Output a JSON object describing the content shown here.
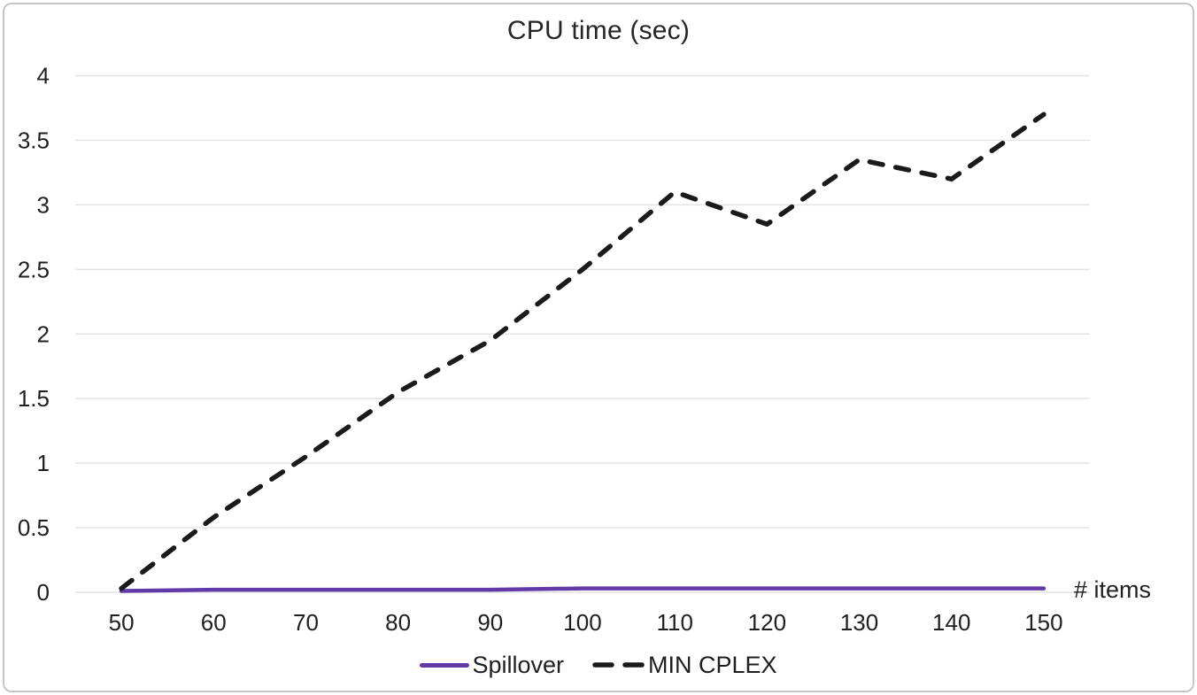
{
  "chart_data": {
    "type": "line",
    "title": "CPU time (sec)",
    "xlabel": "# items",
    "ylabel": "",
    "categories": [
      50,
      60,
      70,
      80,
      90,
      100,
      110,
      120,
      130,
      140,
      150
    ],
    "series": [
      {
        "name": "Spillover",
        "color": "#6339A8",
        "style": "solid",
        "values": [
          0.01,
          0.02,
          0.02,
          0.02,
          0.02,
          0.03,
          0.03,
          0.03,
          0.03,
          0.03,
          0.03
        ]
      },
      {
        "name": "MIN CPLEX",
        "color": "#1A1A1A",
        "style": "dashed",
        "values": [
          0.03,
          0.58,
          1.05,
          1.55,
          1.95,
          2.5,
          3.1,
          2.85,
          3.35,
          3.2,
          3.7
        ]
      }
    ],
    "ylim": [
      0,
      4
    ],
    "yticks": [
      0,
      0.5,
      1,
      1.5,
      2,
      2.5,
      3,
      3.5,
      4
    ],
    "grid": "horizontal",
    "legend_position": "bottom"
  },
  "styles": {
    "grid_color": "#E3E3E3",
    "tick_text_color": "#1F1F1F",
    "title_color": "#262626",
    "background": "#FFFFFF",
    "border_color": "#C6C6C6"
  }
}
